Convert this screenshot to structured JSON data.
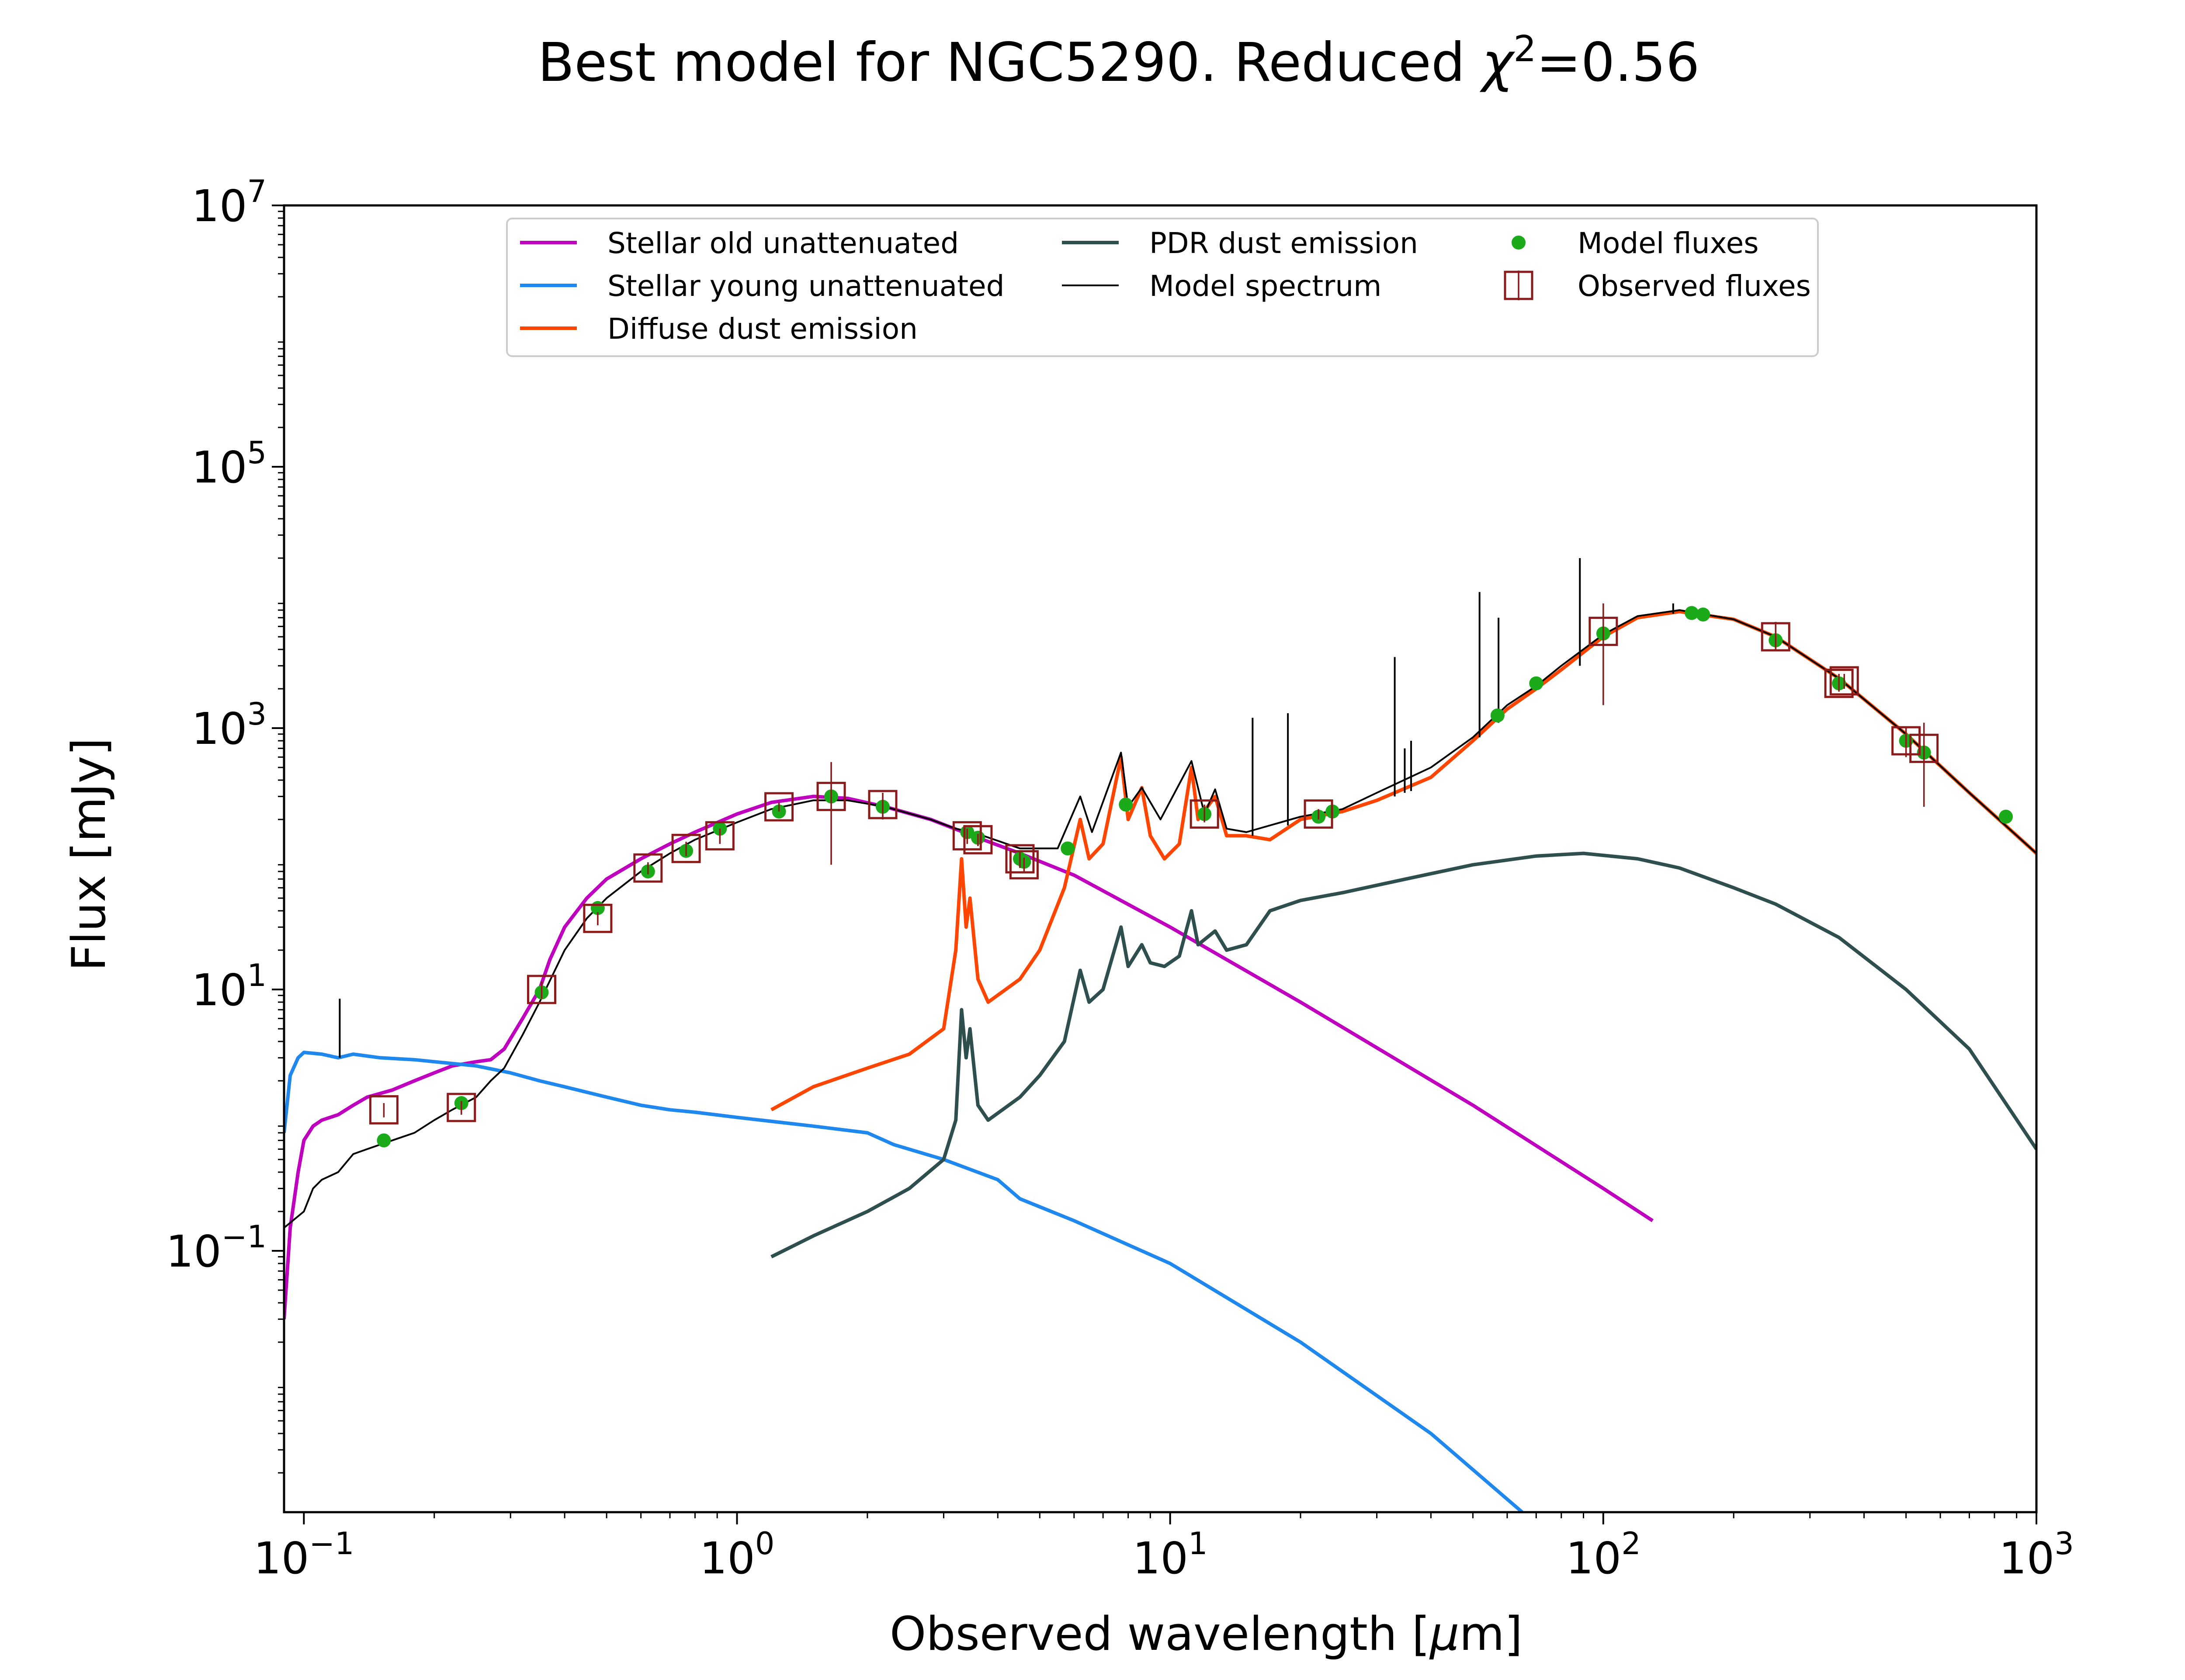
{
  "chart_data": {
    "type": "line",
    "title_prefix": "Best model for NGC5290. Reduced ",
    "title_chi": "χ",
    "title_exp": "2",
    "title_suffix": "=0.56",
    "xlabel_main": "Observed wavelength [",
    "xlabel_mu": "μ",
    "xlabel_unit": "m]",
    "ylabel": "Flux [mJy]",
    "xscale": "log",
    "yscale": "log",
    "xlim": [
      0.09,
      1000
    ],
    "ylim": [
      0.001,
      10000000
    ],
    "grid": false,
    "legend_position": "top-center",
    "x_ticks": [
      {
        "value": 0.1,
        "base": "10",
        "exp": "−1"
      },
      {
        "value": 1,
        "base": "10",
        "exp": "0"
      },
      {
        "value": 10,
        "base": "10",
        "exp": "1"
      },
      {
        "value": 100,
        "base": "10",
        "exp": "2"
      },
      {
        "value": 1000,
        "base": "10",
        "exp": "3"
      }
    ],
    "y_ticks": [
      {
        "value": 0.1,
        "base": "10",
        "exp": "−1"
      },
      {
        "value": 10,
        "base": "10",
        "exp": "1"
      },
      {
        "value": 1000,
        "base": "10",
        "exp": "3"
      },
      {
        "value": 100000,
        "base": "10",
        "exp": "5"
      },
      {
        "value": 10000000,
        "base": "10",
        "exp": "7"
      }
    ],
    "series": [
      {
        "name": "Stellar old unattenuated",
        "color": "#bf00bf",
        "kind": "line",
        "points": [
          [
            0.09,
            0.03
          ],
          [
            0.093,
            0.15
          ],
          [
            0.097,
            0.4
          ],
          [
            0.1,
            0.7
          ],
          [
            0.105,
            0.9
          ],
          [
            0.11,
            1.0
          ],
          [
            0.12,
            1.1
          ],
          [
            0.13,
            1.3
          ],
          [
            0.14,
            1.5
          ],
          [
            0.16,
            1.7
          ],
          [
            0.18,
            2.0
          ],
          [
            0.2,
            2.3
          ],
          [
            0.22,
            2.6
          ],
          [
            0.25,
            2.8
          ],
          [
            0.27,
            2.9
          ],
          [
            0.29,
            3.5
          ],
          [
            0.32,
            6
          ],
          [
            0.35,
            10
          ],
          [
            0.37,
            17
          ],
          [
            0.4,
            30
          ],
          [
            0.45,
            50
          ],
          [
            0.5,
            70
          ],
          [
            0.6,
            100
          ],
          [
            0.7,
            130
          ],
          [
            0.8,
            160
          ],
          [
            1.0,
            220
          ],
          [
            1.2,
            270
          ],
          [
            1.5,
            300
          ],
          [
            1.8,
            290
          ],
          [
            2.2,
            250
          ],
          [
            2.8,
            200
          ],
          [
            3.5,
            150
          ],
          [
            4.5,
            110
          ],
          [
            6,
            75
          ],
          [
            10,
            30
          ],
          [
            20,
            8
          ],
          [
            50,
            1.3
          ],
          [
            100,
            0.3
          ],
          [
            130,
            0.17
          ]
        ]
      },
      {
        "name": "Stellar young unattenuated",
        "color": "#1f88ef",
        "kind": "line",
        "points": [
          [
            0.09,
            0.8
          ],
          [
            0.093,
            2.2
          ],
          [
            0.097,
            3.0
          ],
          [
            0.1,
            3.3
          ],
          [
            0.11,
            3.2
          ],
          [
            0.12,
            3.0
          ],
          [
            0.13,
            3.2
          ],
          [
            0.15,
            3.0
          ],
          [
            0.18,
            2.9
          ],
          [
            0.2,
            2.8
          ],
          [
            0.25,
            2.6
          ],
          [
            0.3,
            2.3
          ],
          [
            0.35,
            2.0
          ],
          [
            0.4,
            1.8
          ],
          [
            0.5,
            1.5
          ],
          [
            0.6,
            1.3
          ],
          [
            0.7,
            1.2
          ],
          [
            0.8,
            1.15
          ],
          [
            1.0,
            1.05
          ],
          [
            1.5,
            0.9
          ],
          [
            2.0,
            0.8
          ],
          [
            2.3,
            0.65
          ],
          [
            3.0,
            0.5
          ],
          [
            4.0,
            0.35
          ],
          [
            4.5,
            0.25
          ],
          [
            6.0,
            0.17
          ],
          [
            10,
            0.08
          ],
          [
            20,
            0.02
          ],
          [
            40,
            0.004
          ],
          [
            65,
            0.001
          ]
        ]
      },
      {
        "name": "Diffuse dust emission",
        "color": "#ff4500",
        "kind": "line",
        "points": [
          [
            1.2,
            1.2
          ],
          [
            1.5,
            1.8
          ],
          [
            2.0,
            2.5
          ],
          [
            2.5,
            3.2
          ],
          [
            3.0,
            5
          ],
          [
            3.2,
            20
          ],
          [
            3.3,
            100
          ],
          [
            3.38,
            30
          ],
          [
            3.45,
            50
          ],
          [
            3.6,
            12
          ],
          [
            3.8,
            8
          ],
          [
            4.5,
            12
          ],
          [
            5.0,
            20
          ],
          [
            5.7,
            60
          ],
          [
            6.2,
            200
          ],
          [
            6.5,
            100
          ],
          [
            7.0,
            130
          ],
          [
            7.7,
            600
          ],
          [
            8.0,
            200
          ],
          [
            8.6,
            350
          ],
          [
            9.0,
            150
          ],
          [
            9.7,
            100
          ],
          [
            10.5,
            130
          ],
          [
            11.2,
            500
          ],
          [
            11.6,
            200
          ],
          [
            12.7,
            300
          ],
          [
            13.5,
            150
          ],
          [
            15,
            150
          ],
          [
            17,
            140
          ],
          [
            20,
            200
          ],
          [
            25,
            230
          ],
          [
            30,
            280
          ],
          [
            40,
            420
          ],
          [
            50,
            800
          ],
          [
            60,
            1400
          ],
          [
            70,
            2000
          ],
          [
            80,
            2800
          ],
          [
            100,
            5000
          ],
          [
            120,
            7000
          ],
          [
            150,
            7800
          ],
          [
            200,
            6800
          ],
          [
            250,
            5000
          ],
          [
            350,
            2400
          ],
          [
            500,
            900
          ],
          [
            700,
            320
          ],
          [
            1000,
            110
          ]
        ]
      },
      {
        "name": "PDR dust emission",
        "color": "#2f4f4f",
        "kind": "line",
        "points": [
          [
            1.2,
            0.09
          ],
          [
            1.5,
            0.13
          ],
          [
            2.0,
            0.2
          ],
          [
            2.5,
            0.3
          ],
          [
            3.0,
            0.5
          ],
          [
            3.2,
            1.0
          ],
          [
            3.3,
            7
          ],
          [
            3.38,
            3
          ],
          [
            3.45,
            5
          ],
          [
            3.6,
            1.3
          ],
          [
            3.8,
            1.0
          ],
          [
            4.5,
            1.5
          ],
          [
            5.0,
            2.2
          ],
          [
            5.7,
            4
          ],
          [
            6.2,
            14
          ],
          [
            6.5,
            8
          ],
          [
            7.0,
            10
          ],
          [
            7.7,
            30
          ],
          [
            8.0,
            15
          ],
          [
            8.6,
            22
          ],
          [
            9.0,
            16
          ],
          [
            9.7,
            15
          ],
          [
            10.5,
            18
          ],
          [
            11.2,
            40
          ],
          [
            11.6,
            22
          ],
          [
            12.7,
            28
          ],
          [
            13.5,
            20
          ],
          [
            15,
            22
          ],
          [
            17,
            40
          ],
          [
            20,
            48
          ],
          [
            25,
            55
          ],
          [
            35,
            70
          ],
          [
            50,
            90
          ],
          [
            70,
            105
          ],
          [
            90,
            110
          ],
          [
            120,
            100
          ],
          [
            150,
            85
          ],
          [
            200,
            60
          ],
          [
            250,
            45
          ],
          [
            350,
            25
          ],
          [
            500,
            10
          ],
          [
            700,
            3.5
          ],
          [
            1000,
            0.6
          ]
        ]
      },
      {
        "name": "Model spectrum",
        "color": "#000000",
        "kind": "line",
        "points": [
          [
            0.09,
            0.15
          ],
          [
            0.1,
            0.2
          ],
          [
            0.105,
            0.3
          ],
          [
            0.11,
            0.35
          ],
          [
            0.12,
            0.4
          ],
          [
            0.13,
            0.55
          ],
          [
            0.14,
            0.6
          ],
          [
            0.16,
            0.7
          ],
          [
            0.18,
            0.8
          ],
          [
            0.2,
            1.0
          ],
          [
            0.22,
            1.2
          ],
          [
            0.25,
            1.5
          ],
          [
            0.27,
            2.0
          ],
          [
            0.29,
            2.5
          ],
          [
            0.32,
            4.5
          ],
          [
            0.35,
            8
          ],
          [
            0.4,
            20
          ],
          [
            0.45,
            35
          ],
          [
            0.5,
            50
          ],
          [
            0.6,
            80
          ],
          [
            0.7,
            110
          ],
          [
            0.8,
            140
          ],
          [
            1.0,
            190
          ],
          [
            1.2,
            240
          ],
          [
            1.5,
            280
          ],
          [
            1.8,
            280
          ],
          [
            2.2,
            250
          ],
          [
            2.8,
            200
          ],
          [
            3.2,
            170
          ],
          [
            3.5,
            160
          ],
          [
            4.5,
            120
          ],
          [
            5.5,
            120
          ],
          [
            6.2,
            300
          ],
          [
            6.6,
            160
          ],
          [
            7.7,
            650
          ],
          [
            8.0,
            250
          ],
          [
            8.6,
            350
          ],
          [
            9.5,
            200
          ],
          [
            11.2,
            560
          ],
          [
            12,
            220
          ],
          [
            12.7,
            340
          ],
          [
            13.5,
            170
          ],
          [
            15,
            160
          ],
          [
            20,
            210
          ],
          [
            25,
            240
          ],
          [
            30,
            320
          ],
          [
            40,
            500
          ],
          [
            50,
            850
          ],
          [
            60,
            1500
          ],
          [
            70,
            2100
          ],
          [
            80,
            3000
          ],
          [
            100,
            5200
          ],
          [
            120,
            7200
          ],
          [
            150,
            8000
          ],
          [
            200,
            6800
          ],
          [
            250,
            5000
          ],
          [
            350,
            2400
          ],
          [
            500,
            900
          ],
          [
            700,
            320
          ],
          [
            1000,
            110
          ]
        ]
      },
      {
        "name": "",
        "color": "#000000",
        "kind": "emission-lines",
        "segments": [
          [
            0.121,
            3,
            8.5
          ],
          [
            15.5,
            150,
            1200
          ],
          [
            18.7,
            180,
            1300
          ],
          [
            33,
            300,
            3500
          ],
          [
            34.8,
            320,
            700
          ],
          [
            36,
            330,
            800
          ],
          [
            51.8,
            850,
            11000
          ],
          [
            57.3,
            1100,
            7000
          ],
          [
            88.3,
            3000,
            20000
          ],
          [
            145,
            7500,
            9000
          ]
        ]
      },
      {
        "name": "Model fluxes",
        "color": "#1aaa1a",
        "kind": "points",
        "points": [
          [
            0.153,
            0.7
          ],
          [
            0.231,
            1.35
          ],
          [
            0.354,
            9.5
          ],
          [
            0.477,
            42
          ],
          [
            0.623,
            80
          ],
          [
            0.763,
            115
          ],
          [
            0.913,
            170
          ],
          [
            1.25,
            230
          ],
          [
            1.65,
            300
          ],
          [
            2.17,
            250
          ],
          [
            3.4,
            160
          ],
          [
            3.6,
            145
          ],
          [
            4.5,
            100
          ],
          [
            4.6,
            95
          ],
          [
            5.8,
            120
          ],
          [
            7.9,
            260
          ],
          [
            12,
            220
          ],
          [
            22,
            210
          ],
          [
            23.7,
            230
          ],
          [
            57,
            1250
          ],
          [
            70,
            2200
          ],
          [
            100,
            5300
          ],
          [
            160,
            7600
          ],
          [
            170,
            7400
          ],
          [
            250,
            4700
          ],
          [
            350,
            2200
          ],
          [
            500,
            800
          ],
          [
            550,
            650
          ],
          [
            850,
            210
          ]
        ]
      },
      {
        "name": "Observed fluxes",
        "color": "#8b1a1a",
        "kind": "errorbars",
        "points": [
          [
            0.153,
            1.2,
            1.05,
            1.35
          ],
          [
            0.231,
            1.25,
            1.1,
            1.4
          ],
          [
            0.354,
            10,
            8.5,
            11.5
          ],
          [
            0.477,
            35,
            31,
            39
          ],
          [
            0.623,
            85,
            76,
            94
          ],
          [
            0.763,
            120,
            105,
            135
          ],
          [
            0.913,
            150,
            130,
            170
          ],
          [
            1.25,
            250,
            230,
            270
          ],
          [
            1.65,
            300,
            90,
            550
          ],
          [
            2.17,
            260,
            200,
            320
          ],
          [
            3.4,
            150,
            130,
            170
          ],
          [
            3.6,
            140,
            125,
            155
          ],
          [
            4.5,
            100,
            85,
            115
          ],
          [
            4.6,
            90,
            78,
            102
          ],
          [
            12,
            220,
            190,
            260
          ],
          [
            22,
            220,
            200,
            240
          ],
          [
            100,
            5500,
            1500,
            9000
          ],
          [
            250,
            5000,
            4000,
            6500
          ],
          [
            350,
            2200,
            1900,
            2600
          ],
          [
            360,
            2300,
            2000,
            2600
          ],
          [
            500,
            800,
            600,
            1000
          ],
          [
            550,
            700,
            250,
            1100
          ]
        ]
      }
    ]
  }
}
